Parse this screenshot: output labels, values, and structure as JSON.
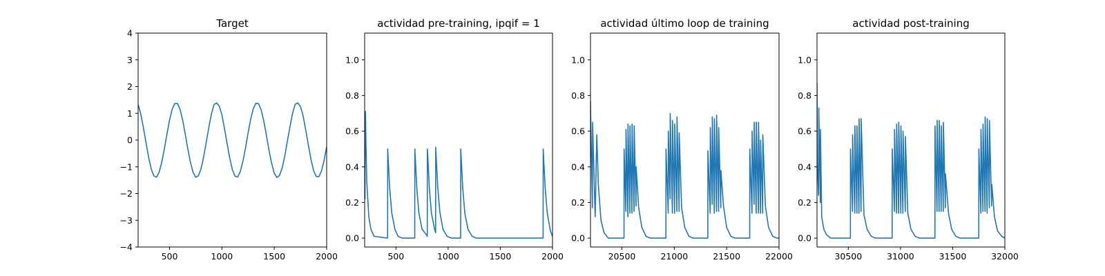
{
  "chart_data": [
    {
      "type": "line",
      "title": "Target",
      "xlim": [
        200,
        2000
      ],
      "ylim": [
        -4,
        4
      ],
      "xticks": [
        500,
        1000,
        1500,
        2000
      ],
      "xtick_labels": [
        "500",
        "1000",
        "1500",
        "2000"
      ],
      "yticks": [
        -4,
        -3,
        -2,
        -1,
        0,
        1,
        2,
        3,
        4
      ],
      "ytick_labels": [
        "−4",
        "−3",
        "−2",
        "−1",
        "0",
        "1",
        "2",
        "3",
        "4"
      ],
      "series": [
        {
          "color": "#1f77b4",
          "x": [
            200,
            225,
            250,
            275,
            300,
            325,
            350,
            375,
            400,
            425,
            450,
            475,
            500,
            525,
            550,
            575,
            600,
            625,
            650,
            675,
            700,
            725,
            750,
            775,
            800,
            825,
            850,
            875,
            900,
            925,
            950,
            975,
            1000,
            1025,
            1050,
            1075,
            1100,
            1125,
            1150,
            1175,
            1200,
            1225,
            1250,
            1275,
            1300,
            1325,
            1350,
            1375,
            1400,
            1425,
            1450,
            1475,
            1500,
            1525,
            1550,
            1575,
            1600,
            1625,
            1650,
            1675,
            1700,
            1725,
            1750,
            1775,
            1800,
            1825,
            1850,
            1875,
            1900,
            1925,
            1950,
            1975,
            2000
          ],
          "y": [
            1.33,
            0.98,
            0.47,
            -0.09,
            -0.64,
            -1.08,
            -1.34,
            -1.39,
            -1.21,
            -0.84,
            -0.34,
            0.22,
            0.75,
            1.15,
            1.37,
            1.37,
            1.15,
            0.75,
            0.22,
            -0.34,
            -0.84,
            -1.21,
            -1.39,
            -1.34,
            -1.08,
            -0.64,
            -0.09,
            0.47,
            0.98,
            1.33,
            1.39,
            1.27,
            0.94,
            0.42,
            -0.14,
            -0.68,
            -1.11,
            -1.35,
            -1.38,
            -1.18,
            -0.8,
            -0.3,
            0.27,
            0.79,
            1.18,
            1.38,
            1.36,
            1.12,
            0.71,
            0.17,
            -0.39,
            -0.88,
            -1.24,
            -1.4,
            -1.32,
            -1.05,
            -0.6,
            -0.04,
            0.51,
            1.01,
            1.34,
            1.39,
            1.25,
            0.91,
            0.38,
            -0.18,
            -0.72,
            -1.14,
            -1.36,
            -1.37,
            -1.16,
            -0.77,
            -0.25
          ]
        }
      ]
    },
    {
      "type": "line",
      "title": "actividad pre-training, ipqif = 1",
      "xlim": [
        200,
        2000
      ],
      "ylim": [
        -0.05,
        1.15
      ],
      "xticks": [
        500,
        1000,
        1500,
        2000
      ],
      "xtick_labels": [
        "500",
        "1000",
        "1500",
        "2000"
      ],
      "yticks": [
        0,
        0.2,
        0.4,
        0.6,
        0.8,
        1.0
      ],
      "ytick_labels": [
        "0.0",
        "0.2",
        "0.4",
        "0.6",
        "0.8",
        "1.0"
      ],
      "series": [
        {
          "color": "#1f77b4",
          "x": [
            200,
            203,
            205,
            208,
            212,
            220,
            240,
            260,
            290,
            420,
            421,
            425,
            440,
            460,
            490,
            520,
            560,
            680,
            681,
            685,
            700,
            720,
            750,
            790,
            800,
            801,
            805,
            820,
            840,
            870,
            880,
            881,
            885,
            900,
            920,
            950,
            990,
            1030,
            1120,
            1121,
            1125,
            1140,
            1160,
            1190,
            1230,
            1270,
            1910,
            1911,
            1915,
            1930,
            1950,
            1980,
            2000
          ],
          "y": [
            0.71,
            0.22,
            0.7,
            0.71,
            0.55,
            0.32,
            0.12,
            0.05,
            0.01,
            0.0,
            0.5,
            0.45,
            0.28,
            0.14,
            0.05,
            0.01,
            0.0,
            0.0,
            0.5,
            0.45,
            0.28,
            0.14,
            0.05,
            0.02,
            0.01,
            0.5,
            0.46,
            0.28,
            0.14,
            0.05,
            0.03,
            0.51,
            0.46,
            0.29,
            0.15,
            0.05,
            0.01,
            0.0,
            0.0,
            0.5,
            0.45,
            0.28,
            0.14,
            0.05,
            0.01,
            0.0,
            0.0,
            0.5,
            0.45,
            0.28,
            0.14,
            0.04,
            0.01
          ]
        }
      ]
    },
    {
      "type": "line",
      "title": "actividad último loop de training",
      "xlim": [
        20200,
        22000
      ],
      "ylim": [
        -0.05,
        1.15
      ],
      "xticks": [
        20500,
        21000,
        21500,
        22000
      ],
      "xtick_labels": [
        "20500",
        "21000",
        "21500",
        "22000"
      ],
      "yticks": [
        0,
        0.2,
        0.4,
        0.6,
        0.8,
        1.0
      ],
      "ytick_labels": [
        "0.0",
        "0.2",
        "0.4",
        "0.6",
        "0.8",
        "1.0"
      ],
      "series": [
        {
          "color": "#1f77b4",
          "x": [
            20200,
            20202,
            20218,
            20220,
            20240,
            20245,
            20260,
            20275,
            20300,
            20330,
            20370,
            20520,
            20521,
            20538,
            20539,
            20557,
            20558,
            20576,
            20577,
            20596,
            20597,
            20616,
            20617,
            20635,
            20636,
            20660,
            20690,
            20730,
            20770,
            20920,
            20921,
            20942,
            20943,
            20960,
            20961,
            20982,
            20983,
            21003,
            21004,
            21025,
            21026,
            21046,
            21047,
            21070,
            21100,
            21140,
            21180,
            21320,
            21321,
            21343,
            21344,
            21362,
            21363,
            21382,
            21383,
            21403,
            21404,
            21423,
            21424,
            21444,
            21445,
            21470,
            21500,
            21540,
            21580,
            21720,
            21721,
            21742,
            21743,
            21762,
            21763,
            21782,
            21783,
            21803,
            21804,
            21823,
            21824,
            21844,
            21845,
            21870,
            21900,
            21940,
            21980,
            22000
          ],
          "y": [
            0.77,
            0.68,
            0.17,
            0.65,
            0.22,
            0.12,
            0.58,
            0.3,
            0.1,
            0.03,
            0.0,
            0.0,
            0.5,
            0.15,
            0.61,
            0.12,
            0.64,
            0.14,
            0.63,
            0.14,
            0.64,
            0.15,
            0.63,
            0.18,
            0.4,
            0.17,
            0.06,
            0.01,
            0.0,
            0.0,
            0.5,
            0.14,
            0.6,
            0.22,
            0.7,
            0.14,
            0.66,
            0.14,
            0.64,
            0.15,
            0.68,
            0.15,
            0.59,
            0.17,
            0.06,
            0.01,
            0.0,
            0.0,
            0.49,
            0.14,
            0.62,
            0.19,
            0.68,
            0.14,
            0.67,
            0.15,
            0.69,
            0.15,
            0.62,
            0.17,
            0.38,
            0.18,
            0.06,
            0.01,
            0.0,
            0.0,
            0.5,
            0.14,
            0.6,
            0.19,
            0.65,
            0.14,
            0.65,
            0.14,
            0.65,
            0.14,
            0.55,
            0.14,
            0.58,
            0.18,
            0.06,
            0.01,
            0.0,
            0.0
          ]
        }
      ]
    },
    {
      "type": "line",
      "title": "actividad post-training",
      "xlim": [
        30200,
        32000
      ],
      "ylim": [
        -0.05,
        1.15
      ],
      "xticks": [
        30500,
        31000,
        31500,
        32000
      ],
      "xtick_labels": [
        "30500",
        "31000",
        "31500",
        "32000"
      ],
      "yticks": [
        0,
        0.2,
        0.4,
        0.6,
        0.8,
        1.0
      ],
      "ytick_labels": [
        "0.0",
        "0.2",
        "0.4",
        "0.6",
        "0.8",
        "1.0"
      ],
      "series": [
        {
          "color": "#1f77b4",
          "x": [
            30200,
            30203,
            30215,
            30217,
            30232,
            30233,
            30245,
            30265,
            30290,
            30330,
            30370,
            30520,
            30521,
            30540,
            30541,
            30562,
            30563,
            30582,
            30583,
            30602,
            30603,
            30622,
            30623,
            30650,
            30680,
            30720,
            30760,
            30920,
            30921,
            30942,
            30943,
            30962,
            30963,
            30982,
            30983,
            31003,
            31004,
            31023,
            31024,
            31046,
            31047,
            31070,
            31100,
            31140,
            31180,
            31330,
            31331,
            31350,
            31351,
            31370,
            31371,
            31390,
            31391,
            31410,
            31411,
            31430,
            31431,
            31460,
            31490,
            31530,
            31570,
            31750,
            31751,
            31770,
            31771,
            31790,
            31791,
            31810,
            31811,
            31830,
            31831,
            31851,
            31852,
            31873,
            31875,
            31900,
            31930,
            31970,
            32000
          ],
          "y": [
            0.87,
            0.42,
            0.24,
            0.73,
            0.2,
            0.61,
            0.12,
            0.05,
            0.02,
            0.0,
            0.0,
            0.0,
            0.5,
            0.15,
            0.58,
            0.14,
            0.63,
            0.14,
            0.63,
            0.14,
            0.67,
            0.15,
            0.67,
            0.13,
            0.05,
            0.01,
            0.0,
            0.0,
            0.5,
            0.15,
            0.61,
            0.14,
            0.64,
            0.14,
            0.65,
            0.14,
            0.63,
            0.14,
            0.6,
            0.15,
            0.57,
            0.14,
            0.05,
            0.01,
            0.0,
            0.0,
            0.63,
            0.15,
            0.66,
            0.15,
            0.66,
            0.15,
            0.63,
            0.15,
            0.65,
            0.17,
            0.36,
            0.14,
            0.05,
            0.01,
            0.0,
            0.0,
            0.5,
            0.14,
            0.61,
            0.15,
            0.64,
            0.15,
            0.68,
            0.14,
            0.67,
            0.17,
            0.66,
            0.18,
            0.3,
            0.12,
            0.04,
            0.01,
            0.0
          ]
        }
      ]
    }
  ]
}
